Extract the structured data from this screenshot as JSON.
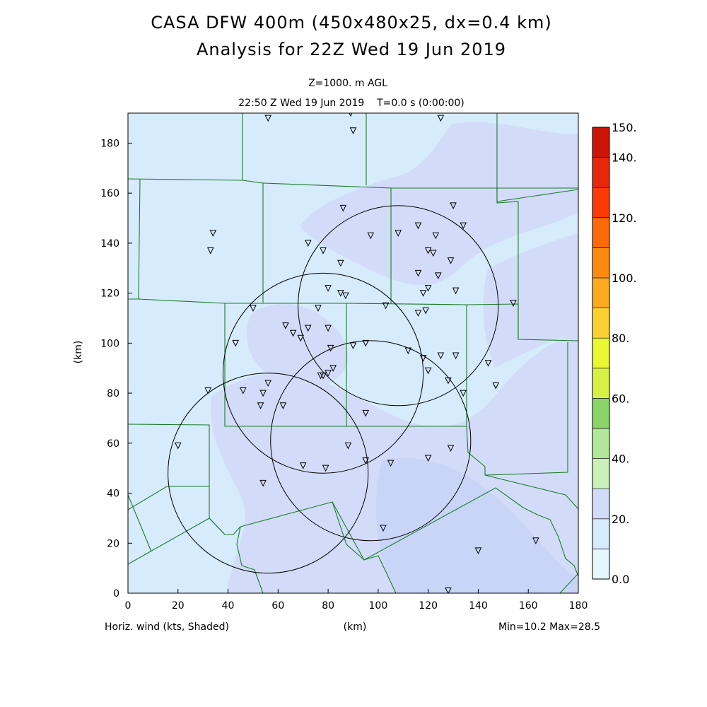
{
  "chart_data": {
    "type": "heatmap",
    "title": "CASA DFW 400m (450x480x25, dx=0.4 km)",
    "subtitle": "Analysis for 22Z Wed 19 Jun 2019",
    "level_label": "Z=1000. m AGL",
    "time_label": "22:50 Z Wed 19 Jun 2019    T=0.0 s (0:00:00)",
    "xlabel": "(km)",
    "ylabel": "(km)",
    "variable_label": "Horiz. wind (kts, Shaded)",
    "minmax_label": "Min=10.2 Max=28.5",
    "xlim": [
      0,
      180
    ],
    "ylim": [
      0,
      192
    ],
    "xticks": [
      0,
      20,
      40,
      60,
      80,
      100,
      120,
      140,
      160,
      180
    ],
    "yticks": [
      0,
      20,
      40,
      60,
      80,
      100,
      120,
      140,
      160,
      180
    ],
    "colorbar": {
      "levels": [
        0,
        10,
        20,
        30,
        40,
        50,
        60,
        70,
        80,
        90,
        100,
        110,
        120,
        130,
        140,
        150
      ],
      "colors": [
        "#e6f6fd",
        "#d6ebfb",
        "#d2dcf8",
        "#c8f0b8",
        "#b2e698",
        "#8ad46a",
        "#d6f046",
        "#e8f832",
        "#fcd030",
        "#fcab20",
        "#fc8a10",
        "#fc6a08",
        "#fc3a08",
        "#e82808",
        "#cc1408",
        "#b00008"
      ],
      "labels": [
        {
          "value": 0,
          "text": "0.0"
        },
        {
          "value": 20,
          "text": "20."
        },
        {
          "value": 40,
          "text": "40."
        },
        {
          "value": 60,
          "text": "60."
        },
        {
          "value": 80,
          "text": "80."
        },
        {
          "value": 100,
          "text": "100."
        },
        {
          "value": 120,
          "text": "120."
        },
        {
          "value": 140,
          "text": "140."
        },
        {
          "value": 150,
          "text": "150."
        }
      ]
    },
    "background_speed_band": "10-20",
    "faster_speed_band": "20-30",
    "radar_rings": [
      {
        "x": 78,
        "y": 88,
        "r": 40
      },
      {
        "x": 97,
        "y": 61,
        "r": 40
      },
      {
        "x": 108,
        "y": 115,
        "r": 40
      },
      {
        "x": 56,
        "y": 48,
        "r": 40
      }
    ],
    "stations": [
      [
        56,
        190
      ],
      [
        89,
        192
      ],
      [
        90,
        185
      ],
      [
        125,
        190
      ],
      [
        34,
        144
      ],
      [
        33,
        137
      ],
      [
        86,
        154
      ],
      [
        130,
        155
      ],
      [
        108,
        144
      ],
      [
        116,
        147
      ],
      [
        123,
        143
      ],
      [
        134,
        147
      ],
      [
        72,
        140
      ],
      [
        78,
        137
      ],
      [
        97,
        143
      ],
      [
        120,
        137
      ],
      [
        122,
        136
      ],
      [
        85,
        132
      ],
      [
        116,
        128
      ],
      [
        124,
        127
      ],
      [
        129,
        133
      ],
      [
        131,
        121
      ],
      [
        118,
        120
      ],
      [
        120,
        122
      ],
      [
        80,
        122
      ],
      [
        85,
        120
      ],
      [
        87,
        119
      ],
      [
        50,
        114
      ],
      [
        76,
        114
      ],
      [
        103,
        115
      ],
      [
        116,
        112
      ],
      [
        119,
        113
      ],
      [
        154,
        116
      ],
      [
        63,
        107
      ],
      [
        72,
        106
      ],
      [
        80,
        106
      ],
      [
        66,
        104
      ],
      [
        69,
        102
      ],
      [
        43,
        100
      ],
      [
        81,
        98
      ],
      [
        90,
        99
      ],
      [
        95,
        100
      ],
      [
        112,
        97
      ],
      [
        118,
        94
      ],
      [
        125,
        95
      ],
      [
        131,
        95
      ],
      [
        144,
        92
      ],
      [
        120,
        89
      ],
      [
        82,
        90
      ],
      [
        80,
        88
      ],
      [
        77,
        87
      ],
      [
        78,
        87
      ],
      [
        128,
        85
      ],
      [
        147,
        83
      ],
      [
        32,
        81
      ],
      [
        46,
        81
      ],
      [
        56,
        84
      ],
      [
        54,
        80
      ],
      [
        53,
        75
      ],
      [
        62,
        75
      ],
      [
        134,
        80
      ],
      [
        95,
        72
      ],
      [
        20,
        59
      ],
      [
        88,
        59
      ],
      [
        129,
        58
      ],
      [
        70,
        51
      ],
      [
        79,
        50
      ],
      [
        95,
        53
      ],
      [
        105,
        52
      ],
      [
        120,
        54
      ],
      [
        54,
        44
      ],
      [
        102,
        26
      ],
      [
        140,
        17
      ],
      [
        163,
        21
      ],
      [
        128,
        1
      ]
    ]
  }
}
